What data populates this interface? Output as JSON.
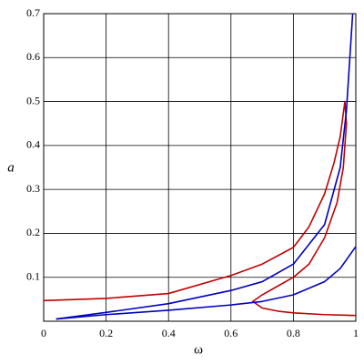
{
  "chart_data": {
    "type": "line",
    "x_label": "ω",
    "y_label": "a",
    "xlim": [
      0,
      1
    ],
    "ylim": [
      0,
      0.7
    ],
    "xticks": [
      0,
      0.2,
      0.4,
      0.6,
      0.8,
      1
    ],
    "yticks": [
      0.1,
      0.2,
      0.3,
      0.4,
      0.5,
      0.6,
      0.7
    ],
    "grid": true,
    "series": [
      {
        "color": "#c00000",
        "x": [
          0,
          0.2,
          0.4,
          0.6,
          0.7,
          0.8,
          0.85,
          0.9,
          0.93,
          0.95,
          0.965,
          0.97,
          0.96,
          0.94,
          0.9,
          0.85,
          0.8,
          0.75,
          0.7,
          0.67,
          0.7,
          0.75,
          0.8,
          0.9,
          1
        ],
        "values": [
          0.047,
          0.052,
          0.063,
          0.104,
          0.13,
          0.168,
          0.215,
          0.29,
          0.36,
          0.42,
          0.5,
          0.45,
          0.35,
          0.27,
          0.19,
          0.13,
          0.1,
          0.08,
          0.06,
          0.045,
          0.03,
          0.023,
          0.019,
          0.015,
          0.013
        ]
      },
      {
        "color": "#0000c0",
        "x": [
          0.04,
          0.2,
          0.4,
          0.6,
          0.7,
          0.8,
          0.9,
          0.95,
          0.97,
          0.99
        ],
        "values": [
          0.005,
          0.02,
          0.04,
          0.07,
          0.09,
          0.13,
          0.22,
          0.35,
          0.48,
          0.7
        ]
      },
      {
        "color": "#0000c0",
        "x": [
          0.04,
          0.2,
          0.4,
          0.6,
          0.7,
          0.8,
          0.9,
          0.95,
          1
        ],
        "values": [
          0.005,
          0.015,
          0.025,
          0.037,
          0.045,
          0.06,
          0.09,
          0.12,
          0.17
        ]
      }
    ]
  }
}
